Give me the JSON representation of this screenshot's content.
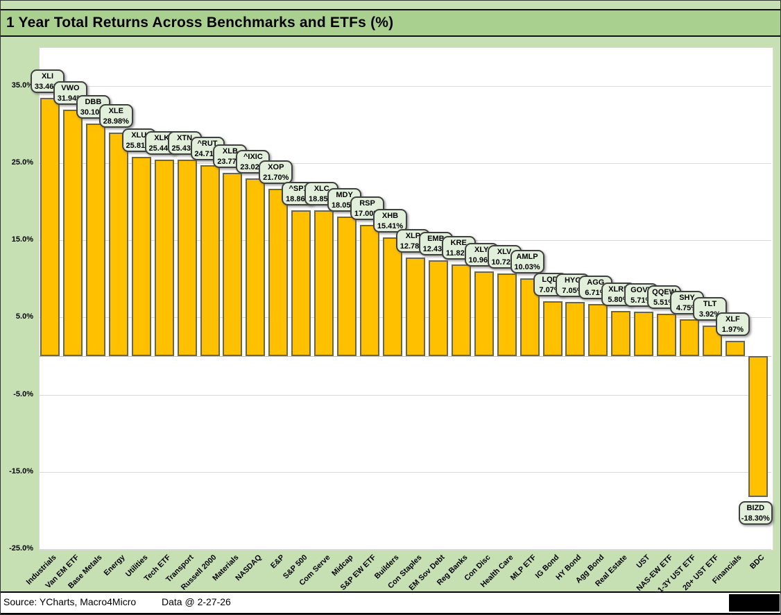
{
  "page": {
    "title": "1 Year Total Returns Across Benchmarks and ETFs (%)",
    "footer": {
      "source": "Source: YCharts, Macro4Micro",
      "data_date": "Data @ 2-27-26"
    }
  },
  "colors": {
    "page_bg": "#c6e0b4",
    "title_band_bg": "#a9d08e",
    "plot_bg": "#ffffff",
    "bar_fill": "#ffc000",
    "bar_border": "#6b6648",
    "callout_bg": "#e2efda",
    "callout_border": "#404040",
    "gridline": "#d9d9d9",
    "zero_axis": "#bfbfbf",
    "text": "#000000"
  },
  "chart_data": {
    "type": "bar",
    "title": "1 Year Total Returns Across Benchmarks and ETFs (%)",
    "xlabel": "",
    "ylabel": "",
    "ylim": [
      -25,
      40
    ],
    "yticks": [
      35,
      25,
      15,
      5,
      -5,
      -15,
      -25
    ],
    "ytick_suffix": "%",
    "grid": true,
    "legend": false,
    "categories": [
      "Industrials",
      "Van EM ETF",
      "Base Metals",
      "Energy",
      "Utilities",
      "Tech ETF",
      "Transport",
      "Russell 2000",
      "Materials",
      "NASDAQ",
      "E&P",
      "S&P 500",
      "Com Serve",
      "Midcap",
      "S&P EW ETF",
      "Builders",
      "Con Staples",
      "EM Sov Debt",
      "Reg Banks",
      "Con Disc",
      "Health Care",
      "MLP ETF",
      "IG Bond",
      "HY Bond",
      "Agg Bond",
      "Real Estate",
      "UST",
      "NAS-EW ETF",
      "1-3Y UST ETF",
      "20+ UST ETF",
      "Financials",
      "BDC"
    ],
    "tickers": [
      "XLI",
      "VWO",
      "DBB",
      "XLE",
      "XLU",
      "XLK",
      "XTN",
      "^RUT",
      "XLB",
      "^IXIC",
      "XOP",
      "^SPX",
      "XLC",
      "MDY",
      "RSP",
      "XHB",
      "XLP",
      "EMB",
      "KRE",
      "XLY",
      "XLV",
      "AMLP",
      "LQD",
      "HYG",
      "AGG",
      "XLRE",
      "GOVT",
      "QQEW",
      "SHY",
      "TLT",
      "XLF",
      "BIZD"
    ],
    "values": [
      33.46,
      31.94,
      30.1,
      28.98,
      25.81,
      25.44,
      25.43,
      24.71,
      23.77,
      23.02,
      21.7,
      18.86,
      18.85,
      18.05,
      17.0,
      15.41,
      12.78,
      12.43,
      11.82,
      10.96,
      10.72,
      10.03,
      7.07,
      7.05,
      6.71,
      5.8,
      5.71,
      5.51,
      4.75,
      3.92,
      1.97,
      -18.3
    ]
  }
}
